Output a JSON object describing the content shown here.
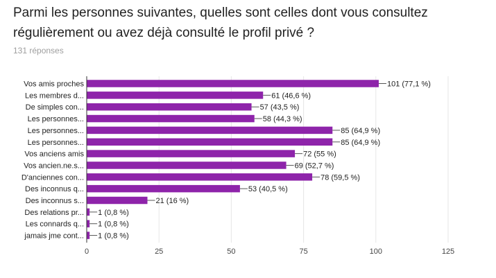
{
  "title": "Parmi les personnes suivantes, quelles sont celles dont vous consultez régulièrement ou avez déjà consulté le profil privé ?",
  "subtitle": "131 réponses",
  "colors": {
    "bar": "#8e24aa",
    "grid": "#e6e6e6",
    "axis": "#333333",
    "leader": "#555555"
  },
  "chart_data": {
    "type": "bar",
    "orientation": "horizontal",
    "categories": [
      "Vos amis proches",
      "Les membres d...",
      "De simples con...",
      "Les personnes...",
      "Les personnes...",
      "Les personnes...",
      "Vos anciens amis",
      "Vos ancien.ne.s...",
      "D'anciennes con...",
      "Des inconnus q...",
      "Des inconnus s...",
      "Des relations pr...",
      "Les connards q...",
      "jamais jme cont..."
    ],
    "values": [
      101,
      61,
      57,
      58,
      85,
      85,
      72,
      69,
      78,
      53,
      21,
      1,
      1,
      1
    ],
    "data_labels": [
      "101 (77,1 %)",
      "61 (46,6 %)",
      "57 (43,5 %)",
      "58 (44,3 %)",
      "85 (64,9 %)",
      "85 (64,9 %)",
      "72 (55 %)",
      "69 (52,7 %)",
      "78 (59,5 %)",
      "53 (40,5 %)",
      "21 (16 %)",
      "1 (0,8 %)",
      "1 (0,8 %)",
      "1 (0,8 %)"
    ],
    "xlim": [
      0,
      125
    ],
    "xticks": [
      0,
      25,
      50,
      75,
      100,
      125
    ],
    "grid": true
  }
}
